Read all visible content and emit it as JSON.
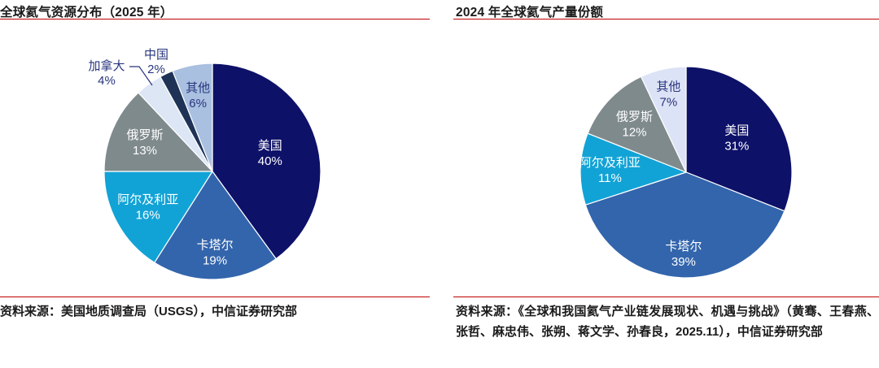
{
  "styles": {
    "rule_red": "#C00000",
    "title_color": "#1A1A1A",
    "outside_label_color": "#28357E",
    "inside_label_color": "#FFFFFF"
  },
  "chart_data": [
    {
      "type": "pie",
      "title": "全球氦气资源分布（2025 年）",
      "source": "资料来源：美国地质调查局（USGS），中信证券研究部",
      "start_angle": "12-oclock",
      "direction": "clockwise",
      "unit": "%",
      "slices": [
        {
          "label": "美国",
          "value": 40,
          "color": "#0E1168",
          "label_color": "#FFFFFF",
          "label_placement": "inside"
        },
        {
          "label": "卡塔尔",
          "value": 19,
          "color": "#3365AC",
          "label_color": "#FFFFFF",
          "label_placement": "inside"
        },
        {
          "label": "阿尔及利亚",
          "value": 16,
          "color": "#12A3D6",
          "label_color": "#FFFFFF",
          "label_placement": "inside"
        },
        {
          "label": "俄罗斯",
          "value": 13,
          "color": "#7F8A8D",
          "label_color": "#FFFFFF",
          "label_placement": "inside"
        },
        {
          "label": "加拿大",
          "value": 4,
          "color": "#DCE6F5",
          "label_color": "#28357E",
          "label_placement": "outside"
        },
        {
          "label": "中国",
          "value": 2,
          "color": "#1E3356",
          "label_color": "#28357E",
          "label_placement": "outside"
        },
        {
          "label": "其他",
          "value": 6,
          "color": "#A9C0E0",
          "label_color": "#28357E",
          "label_placement": "inside"
        }
      ]
    },
    {
      "type": "pie",
      "title": "2024 年全球氦气产量份额",
      "source": "资料来源：《全球和我国氦气产业链发展现状、机遇与挑战》（黄骞、王春燕、张哲、麻忠伟、张朔、蒋文学、孙春良，2025.11），中信证券研究部",
      "start_angle": "12-oclock",
      "direction": "clockwise",
      "unit": "%",
      "slices": [
        {
          "label": "美国",
          "value": 31,
          "color": "#0E1168",
          "label_color": "#FFFFFF",
          "label_placement": "inside"
        },
        {
          "label": "卡塔尔",
          "value": 39,
          "color": "#3365AC",
          "label_color": "#FFFFFF",
          "label_placement": "inside"
        },
        {
          "label": "阿尔及利亚",
          "value": 11,
          "color": "#12A3D6",
          "label_color": "#FFFFFF",
          "label_placement": "inside"
        },
        {
          "label": "俄罗斯",
          "value": 12,
          "color": "#7F8A8D",
          "label_color": "#FFFFFF",
          "label_placement": "inside"
        },
        {
          "label": "其他",
          "value": 7,
          "color": "#DDE3F6",
          "label_color": "#28357E",
          "label_placement": "inside"
        }
      ]
    }
  ]
}
